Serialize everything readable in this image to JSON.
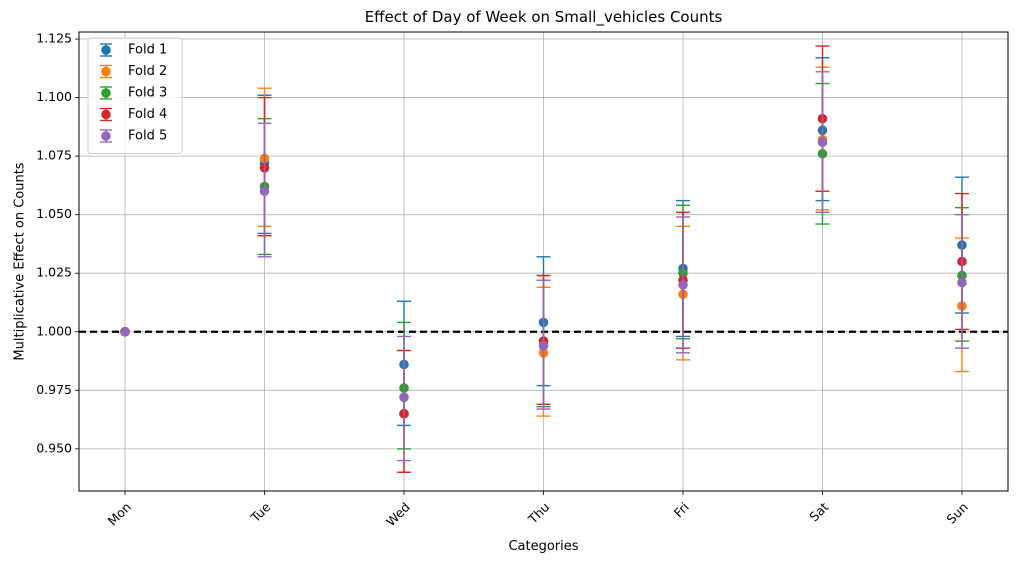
{
  "chart_data": {
    "type": "scatter",
    "title": "Effect of Day of Week on Small_vehicles Counts",
    "xlabel": "Categories",
    "ylabel": "Multiplicative Effect on Counts",
    "categories": [
      "Mon",
      "Tue",
      "Wed",
      "Thu",
      "Fri",
      "Sat",
      "Sun"
    ],
    "ylim": [
      0.932,
      1.128
    ],
    "yticks": [
      0.95,
      0.975,
      1.0,
      1.025,
      1.05,
      1.075,
      1.1,
      1.125
    ],
    "ytick_labels": [
      "0.950",
      "0.975",
      "1.000",
      "1.025",
      "1.050",
      "1.075",
      "1.100",
      "1.125"
    ],
    "grid": true,
    "legend_position": "top-left",
    "reference_line": {
      "y": 1.0,
      "style": "dashed",
      "color": "#000000"
    },
    "series": [
      {
        "name": "Fold 1",
        "color": "#1f77b4",
        "values": [
          1.0,
          1.072,
          0.986,
          1.004,
          1.027,
          1.086,
          1.037
        ],
        "lower": [
          1.0,
          1.042,
          0.96,
          0.977,
          0.998,
          1.056,
          1.008
        ],
        "upper": [
          1.0,
          1.101,
          1.013,
          1.032,
          1.056,
          1.117,
          1.066
        ]
      },
      {
        "name": "Fold 2",
        "color": "#ff7f0e",
        "values": [
          1.0,
          1.074,
          0.965,
          0.991,
          1.016,
          1.082,
          1.011
        ],
        "lower": [
          1.0,
          1.045,
          0.94,
          0.964,
          0.988,
          1.052,
          0.983
        ],
        "upper": [
          1.0,
          1.104,
          0.992,
          1.019,
          1.045,
          1.113,
          1.04
        ]
      },
      {
        "name": "Fold 3",
        "color": "#2ca02c",
        "values": [
          1.0,
          1.062,
          0.976,
          0.996,
          1.025,
          1.076,
          1.024
        ],
        "lower": [
          1.0,
          1.033,
          0.95,
          0.968,
          0.997,
          1.046,
          0.996
        ],
        "upper": [
          1.0,
          1.091,
          1.004,
          1.024,
          1.054,
          1.106,
          1.053
        ]
      },
      {
        "name": "Fold 4",
        "color": "#d62728",
        "values": [
          1.0,
          1.07,
          0.965,
          0.996,
          1.022,
          1.091,
          1.03
        ],
        "lower": [
          1.0,
          1.041,
          0.94,
          0.969,
          0.993,
          1.06,
          1.001
        ],
        "upper": [
          1.0,
          1.1,
          0.992,
          1.024,
          1.051,
          1.122,
          1.059
        ]
      },
      {
        "name": "Fold 5",
        "color": "#9467bd",
        "values": [
          1.0,
          1.06,
          0.972,
          0.994,
          1.02,
          1.081,
          1.021
        ],
        "lower": [
          1.0,
          1.032,
          0.945,
          0.967,
          0.991,
          1.051,
          0.993
        ],
        "upper": [
          1.0,
          1.089,
          0.998,
          1.022,
          1.049,
          1.111,
          1.05
        ]
      }
    ]
  }
}
